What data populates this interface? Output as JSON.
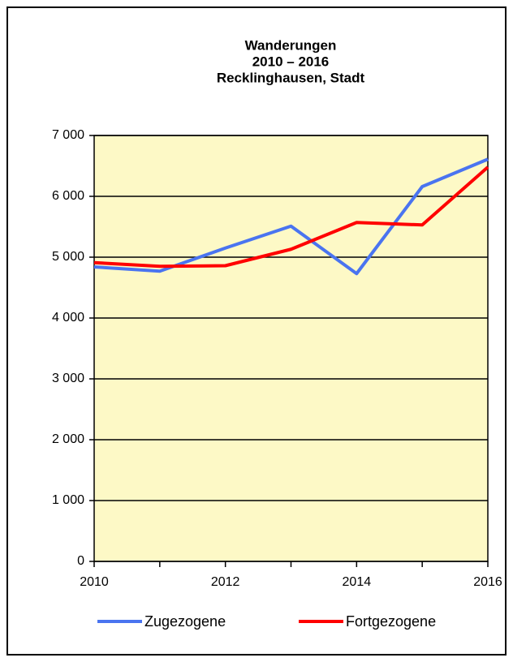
{
  "chart_data": {
    "type": "line",
    "title": [
      "Wanderungen",
      "2010 – 2016",
      "Recklinghausen, Stadt"
    ],
    "x": [
      2010,
      2011,
      2012,
      2013,
      2014,
      2015,
      2016
    ],
    "series": [
      {
        "name": "Zugezogene",
        "color": "#4a74f0",
        "values": [
          4840,
          4770,
          5150,
          5510,
          4730,
          6160,
          6610
        ]
      },
      {
        "name": "Fortgezogene",
        "color": "#ff0000",
        "values": [
          4910,
          4850,
          4860,
          5130,
          5570,
          5530,
          6480
        ]
      }
    ],
    "xlim": [
      2010,
      2016
    ],
    "xticks": [
      2010,
      2012,
      2014,
      2016
    ],
    "xminor_ticks": [
      2011,
      2013,
      2015
    ],
    "ylim": [
      0,
      7000
    ],
    "yticks": [
      0,
      {
        "value": 1000,
        "label": "1 000"
      },
      {
        "value": 2000,
        "label": "2 000"
      },
      {
        "value": 3000,
        "label": "3 000"
      },
      {
        "value": 4000,
        "label": "4 000"
      },
      {
        "value": 5000,
        "label": "5 000"
      },
      {
        "value": 6000,
        "label": "6 000"
      },
      {
        "value": 7000,
        "label": "7 000"
      }
    ],
    "grid": true,
    "plot_background": "#fdf9c6",
    "legend": "bottom"
  }
}
